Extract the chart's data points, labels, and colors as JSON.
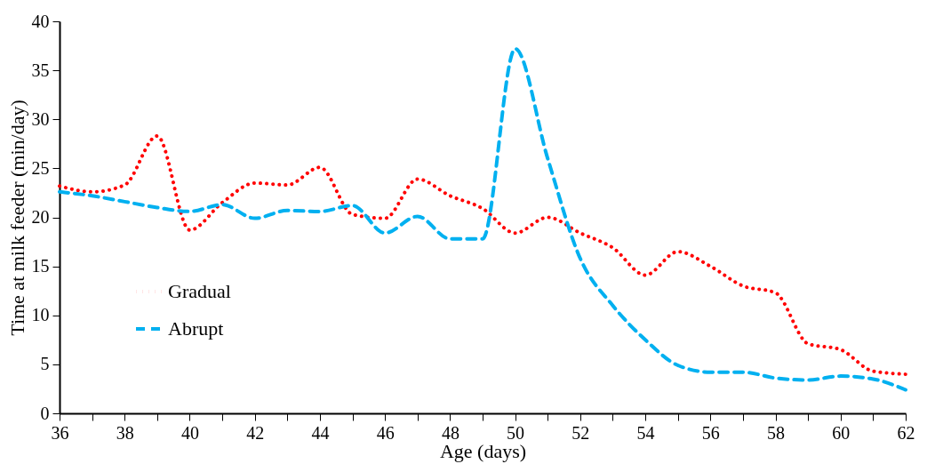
{
  "chart_data": {
    "type": "line",
    "xlabel": "Age (days)",
    "ylabel": "Time at milk feeder (min/day)",
    "x": [
      36,
      37,
      38,
      39,
      40,
      41,
      42,
      43,
      44,
      45,
      46,
      47,
      48,
      49,
      50,
      51,
      52,
      53,
      54,
      55,
      56,
      57,
      58,
      59,
      60,
      61,
      62
    ],
    "series": [
      {
        "name": "Gradual",
        "color": "#ff0000",
        "line_style": "dotted",
        "values": [
          23.2,
          22.6,
          23.3,
          28.3,
          18.7,
          21.5,
          23.5,
          23.3,
          25.1,
          20.3,
          19.9,
          23.9,
          22.2,
          20.9,
          18.4,
          20.0,
          18.4,
          16.9,
          14.1,
          16.5,
          15.0,
          13.0,
          12.3,
          7.1,
          6.5,
          4.3,
          4.0
        ]
      },
      {
        "name": "Abrupt",
        "color": "#00b0f0",
        "line_style": "dashed",
        "values": [
          22.6,
          22.2,
          21.6,
          21.0,
          20.6,
          21.3,
          19.9,
          20.7,
          20.6,
          21.2,
          18.4,
          20.1,
          17.8,
          17.8,
          37.2,
          26.0,
          15.8,
          11.0,
          7.5,
          4.9,
          4.2,
          4.2,
          3.6,
          3.4,
          3.8,
          3.5,
          2.4
        ]
      }
    ],
    "xlim": [
      36,
      62
    ],
    "xticks": [
      36,
      {
        "value": 37,
        "label": null
      },
      38,
      {
        "value": 39,
        "label": null
      },
      40,
      {
        "value": 41,
        "label": null
      },
      42,
      {
        "value": 43,
        "label": null
      },
      44,
      {
        "value": 45,
        "label": null
      },
      46,
      {
        "value": 47,
        "label": null
      },
      48,
      {
        "value": 49,
        "label": null
      },
      50,
      {
        "value": 51,
        "label": null
      },
      52,
      {
        "value": 53,
        "label": null
      },
      54,
      {
        "value": 55,
        "label": null
      },
      56,
      {
        "value": 57,
        "label": null
      },
      58,
      {
        "value": 59,
        "label": null
      },
      60,
      {
        "value": 61,
        "label": null
      },
      62
    ],
    "ylim": [
      0,
      40
    ],
    "yticks": [
      0,
      5,
      10,
      15,
      20,
      25,
      30,
      35,
      40
    ],
    "grid": false,
    "legend": "bottom left",
    "marker": "none"
  }
}
